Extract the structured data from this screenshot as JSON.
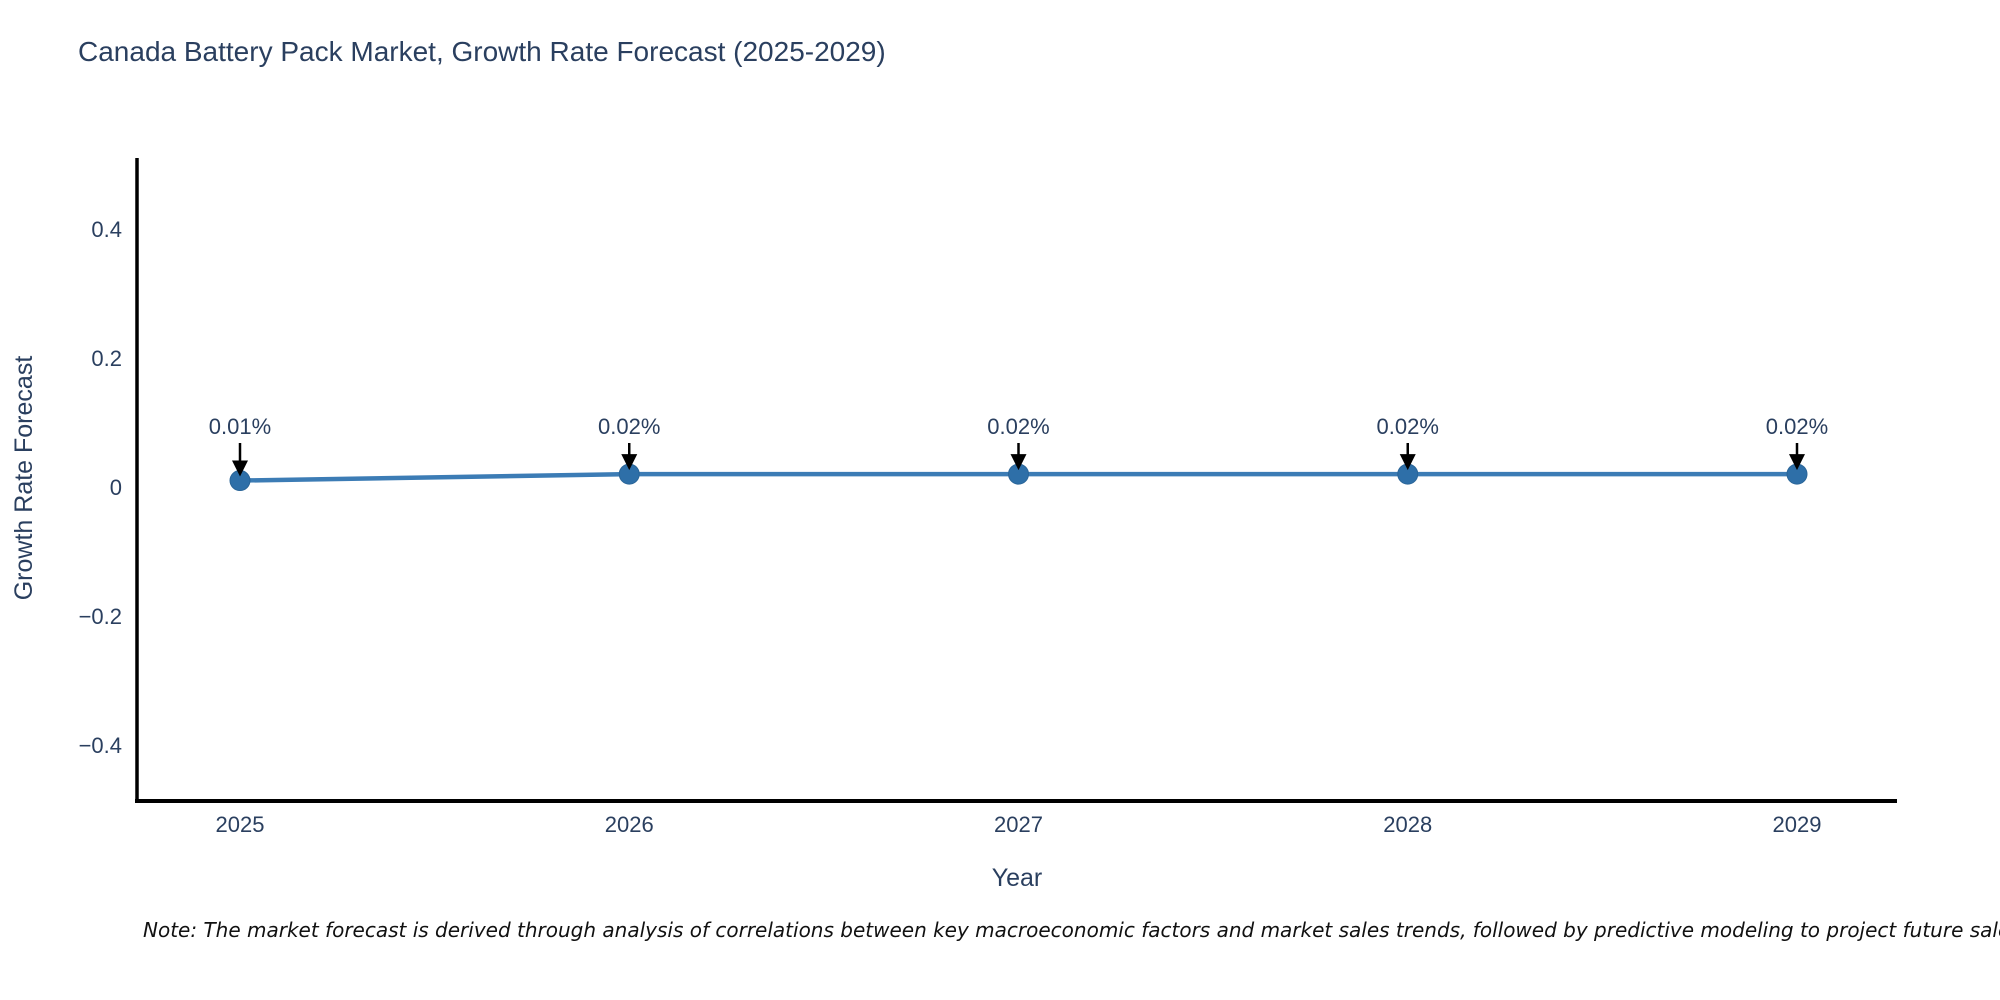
{
  "title": "Canada Battery Pack Market, Growth Rate Forecast (2025-2029)",
  "note": "Note: The market forecast is derived through analysis of correlations between key macroeconomic factors and market sales trends, followed by predictive modeling to project future sales",
  "chart_data": {
    "type": "line",
    "title": "Canada Battery Pack Market, Growth Rate Forecast (2025-2029)",
    "xlabel": "Year",
    "ylabel": "Growth Rate Forecast",
    "x": [
      2025,
      2026,
      2027,
      2028,
      2029
    ],
    "xtick_labels": [
      "2025",
      "2026",
      "2027",
      "2028",
      "2029"
    ],
    "series": [
      {
        "name": "Growth Rate Forecast",
        "values": [
          0.01,
          0.02,
          0.02,
          0.02,
          0.02
        ]
      }
    ],
    "annotations": [
      "0.01%",
      "0.02%",
      "0.02%",
      "0.02%",
      "0.02%"
    ],
    "ylim": [
      -0.5,
      0.51
    ],
    "yticks": [
      0.4,
      0.2,
      0,
      -0.2,
      -0.4
    ],
    "ytick_labels": [
      "0.4",
      "0.2",
      "0",
      "−0.2",
      "−0.4"
    ],
    "grid": false,
    "legend": false,
    "colors": {
      "line": "#3c7cb5",
      "marker": "#2e6fa8",
      "marker_edge": "#2a6598",
      "text": "#2a3f5f",
      "axis_line": "#000000",
      "annotation_arrow": "#000000",
      "background": "#ffffff"
    }
  }
}
